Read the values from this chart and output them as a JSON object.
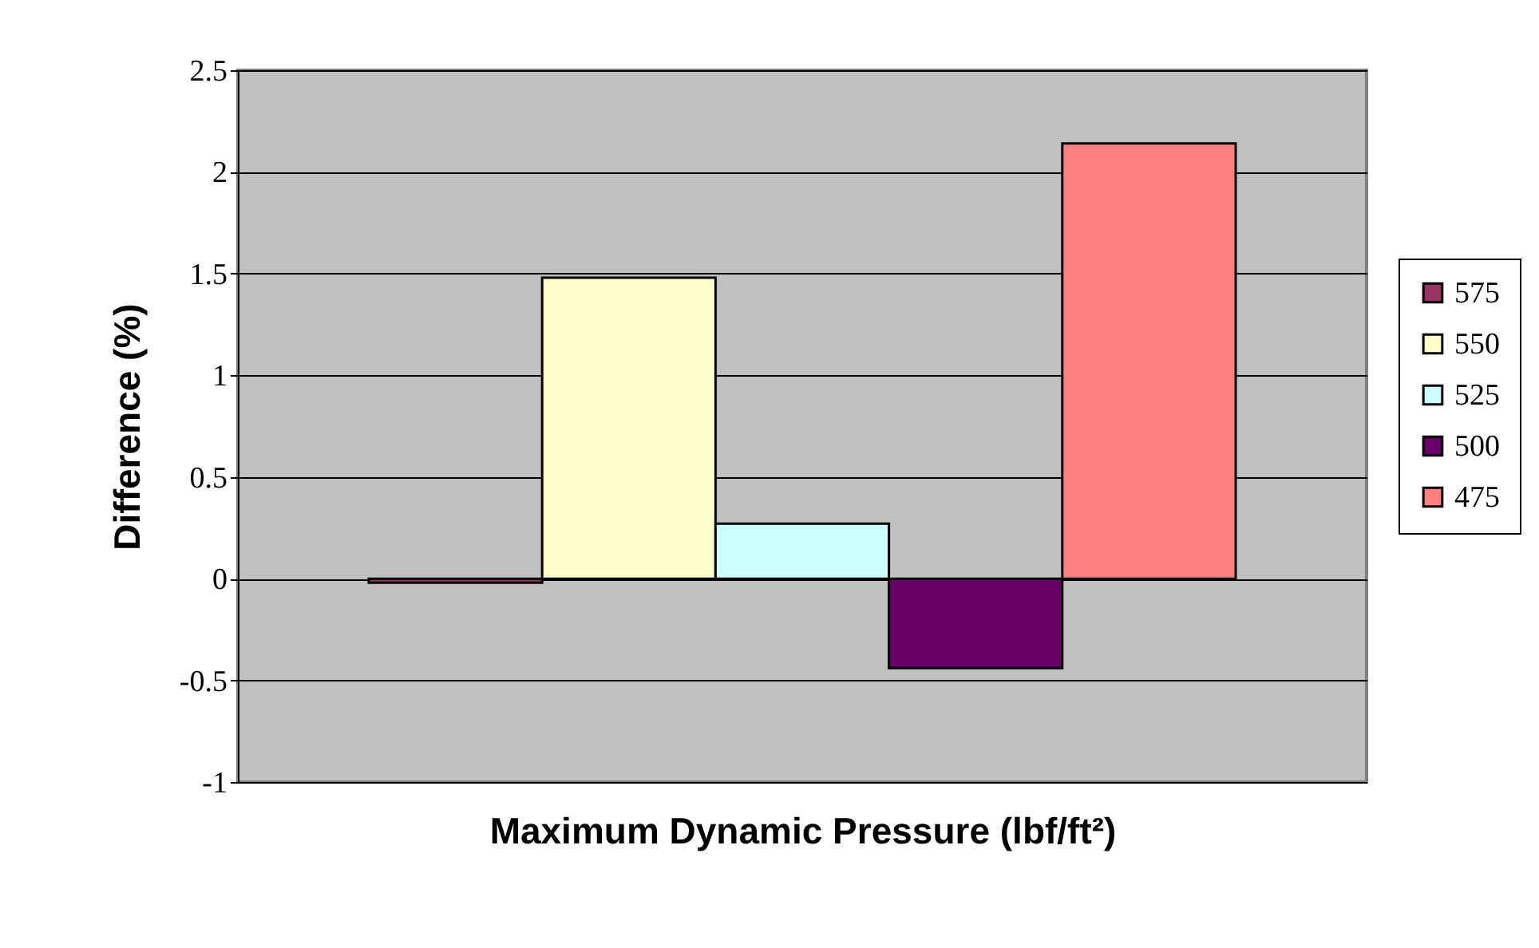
{
  "chart_data": {
    "type": "bar",
    "xlabel": "Maximum Dynamic Pressure (lbf/ft²)",
    "ylabel": "Difference (%)",
    "categories": [
      null
    ],
    "series": [
      {
        "name": "575",
        "color": "#993366",
        "values": [
          -0.02
        ]
      },
      {
        "name": "550",
        "color": "#ffffcc",
        "values": [
          1.48
        ]
      },
      {
        "name": "525",
        "color": "#ccffff",
        "values": [
          0.27
        ]
      },
      {
        "name": "500",
        "color": "#660066",
        "values": [
          -0.44
        ]
      },
      {
        "name": "475",
        "color": "#ff8080",
        "values": [
          2.14
        ]
      }
    ],
    "ylim": [
      -1,
      2.5
    ],
    "yticks": [
      -1,
      -0.5,
      0,
      0.5,
      1,
      1.5,
      2,
      2.5
    ],
    "grid": "y",
    "legend": "right"
  }
}
